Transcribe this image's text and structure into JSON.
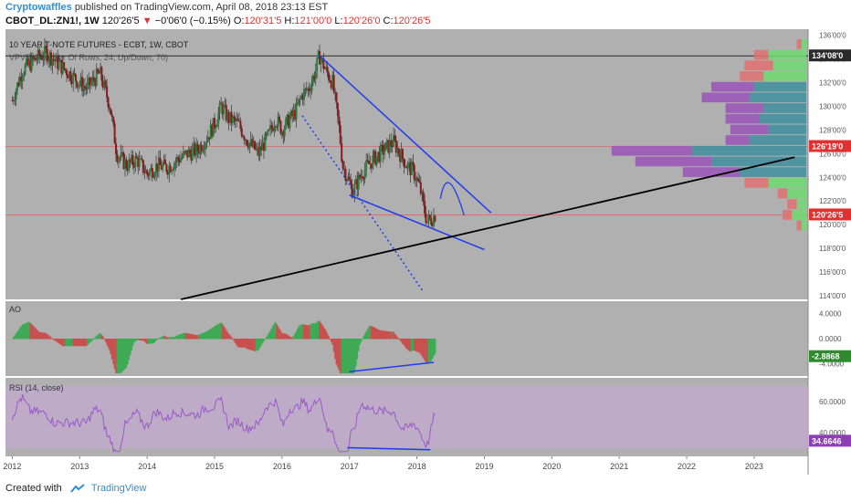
{
  "header": {
    "author": "Cryptowaffles",
    "published": "published on TradingView.com, April 08, 2018 23:13 EST",
    "symbol": "CBOT_DL:ZN1!, 1W",
    "last": "120'26'5",
    "change": "−0'06'0 (−0.15%)",
    "open_label": "O:",
    "open": "120'31'5",
    "high_label": "H:",
    "high": "121'00'0",
    "low_label": "L:",
    "low": "120'26'0",
    "close_label": "C:",
    "close": "120'26'5"
  },
  "footer": {
    "created_with": "Created with",
    "brand": "TradingView"
  },
  "colors": {
    "pane_bg": "#b0b0b0",
    "axis_bg": "#ffffff",
    "trend_blue": "#1f3cf0",
    "trend_black": "#000000",
    "vp_up": "#6fdb6f",
    "vp_down": "#e07070",
    "vp_up2": "#3f8fa0",
    "vp_down2": "#9a55b8",
    "ao_up": "#3faa55",
    "ao_down": "#c95050",
    "rsi_line": "#9b59c9",
    "rsi_band": "#c8a8d8",
    "label_red": "#e03131",
    "label_green": "#2e8b2e",
    "label_purple": "#8e3fb5",
    "label_dark": "#2a2a2a"
  },
  "chart_data": [
    {
      "type": "candlestick",
      "title": "10 YEAR T-NOTE FUTURES - ECBT, 1W, CBOT",
      "overlay_label": "VPVR (Number Of Rows, 24, Up/Down, 70)",
      "x_ticks": [
        "2012",
        "2013",
        "2014",
        "2015",
        "2016",
        "2017",
        "2018",
        "2019",
        "2020",
        "2021",
        "2022",
        "2023"
      ],
      "x_range": [
        2011.9,
        2023.8
      ],
      "y_ticks": [
        "114'00'0",
        "116'00'0",
        "118'00'0",
        "120'00'0",
        "122'00'0",
        "124'00'0",
        "126'00'0",
        "128'00'0",
        "130'00'0",
        "132'00'0",
        "134'00'0",
        "136'00'0"
      ],
      "y_range": [
        113.7,
        136.5
      ],
      "price_labels": [
        {
          "text": "134'08'0",
          "value": 134.25,
          "style": "dark"
        },
        {
          "text": "126'19'0",
          "value": 126.6,
          "style": "red"
        },
        {
          "text": "120'26'5",
          "value": 120.83,
          "style": "red"
        }
      ],
      "price_path": [
        [
          2012.0,
          130.5
        ],
        [
          2012.15,
          133.0
        ],
        [
          2012.35,
          134.0
        ],
        [
          2012.5,
          134.5
        ],
        [
          2012.7,
          133.5
        ],
        [
          2012.9,
          132.5
        ],
        [
          2013.1,
          131.5
        ],
        [
          2013.3,
          132.8
        ],
        [
          2013.45,
          130.0
        ],
        [
          2013.55,
          126.0
        ],
        [
          2013.7,
          125.0
        ],
        [
          2013.85,
          125.5
        ],
        [
          2014.0,
          124.3
        ],
        [
          2014.15,
          125.0
        ],
        [
          2014.3,
          124.8
        ],
        [
          2014.45,
          125.5
        ],
        [
          2014.6,
          126.0
        ],
        [
          2014.75,
          126.3
        ],
        [
          2014.9,
          127.5
        ],
        [
          2015.0,
          128.5
        ],
        [
          2015.1,
          130.0
        ],
        [
          2015.2,
          129.0
        ],
        [
          2015.35,
          128.5
        ],
        [
          2015.5,
          127.0
        ],
        [
          2015.65,
          126.0
        ],
        [
          2015.8,
          127.5
        ],
        [
          2015.9,
          129.0
        ],
        [
          2016.0,
          128.0
        ],
        [
          2016.1,
          128.8
        ],
        [
          2016.2,
          129.5
        ],
        [
          2016.3,
          131.0
        ],
        [
          2016.4,
          131.5
        ],
        [
          2016.5,
          133.0
        ],
        [
          2016.55,
          134.3
        ],
        [
          2016.65,
          133.0
        ],
        [
          2016.75,
          132.0
        ],
        [
          2016.85,
          128.0
        ],
        [
          2016.9,
          125.0
        ],
        [
          2016.97,
          124.0
        ],
        [
          2017.05,
          122.8
        ],
        [
          2017.2,
          124.5
        ],
        [
          2017.35,
          125.5
        ],
        [
          2017.45,
          126.0
        ],
        [
          2017.55,
          126.5
        ],
        [
          2017.65,
          127.0
        ],
        [
          2017.75,
          126.0
        ],
        [
          2017.85,
          125.0
        ],
        [
          2017.95,
          124.5
        ],
        [
          2018.05,
          123.0
        ],
        [
          2018.1,
          121.5
        ],
        [
          2018.15,
          120.3
        ],
        [
          2018.22,
          120.5
        ],
        [
          2018.27,
          120.83
        ]
      ],
      "volume_profile": [
        {
          "price": 135.2,
          "up": 1,
          "down": 1
        },
        {
          "price": 134.3,
          "up": 8,
          "down": 3
        },
        {
          "price": 133.4,
          "up": 7,
          "down": 6
        },
        {
          "price": 132.5,
          "up": 9,
          "down": 5
        },
        {
          "price": 131.6,
          "up": 11,
          "down": 9
        },
        {
          "price": 130.7,
          "up": 12,
          "down": 10
        },
        {
          "price": 129.8,
          "up": 9,
          "down": 8
        },
        {
          "price": 128.9,
          "up": 10,
          "down": 7
        },
        {
          "price": 128.0,
          "up": 8,
          "down": 8
        },
        {
          "price": 127.1,
          "up": 12,
          "down": 5
        },
        {
          "price": 126.2,
          "up": 24,
          "down": 17
        },
        {
          "price": 125.3,
          "up": 20,
          "down": 16
        },
        {
          "price": 124.4,
          "up": 14,
          "down": 12
        },
        {
          "price": 123.5,
          "up": 8,
          "down": 5
        },
        {
          "price": 122.6,
          "up": 4,
          "down": 2
        },
        {
          "price": 121.7,
          "up": 2,
          "down": 2
        },
        {
          "price": 120.8,
          "up": 3,
          "down": 2
        },
        {
          "price": 119.9,
          "up": 1,
          "down": 1
        }
      ]
    },
    {
      "type": "bar",
      "title": "AO",
      "y_ticks": [
        "4.0000",
        "0.0000",
        "-4.0000"
      ],
      "y_range": [
        -6,
        6
      ],
      "last_label": "-2.8868",
      "last_value": -2.8868
    },
    {
      "type": "line",
      "title": "RSI (14, close)",
      "y_ticks": [
        "60.0000",
        "40.0000"
      ],
      "y_range": [
        25,
        75
      ],
      "band": [
        30,
        70
      ],
      "last_label": "34.6646",
      "last_value": 34.66
    }
  ]
}
